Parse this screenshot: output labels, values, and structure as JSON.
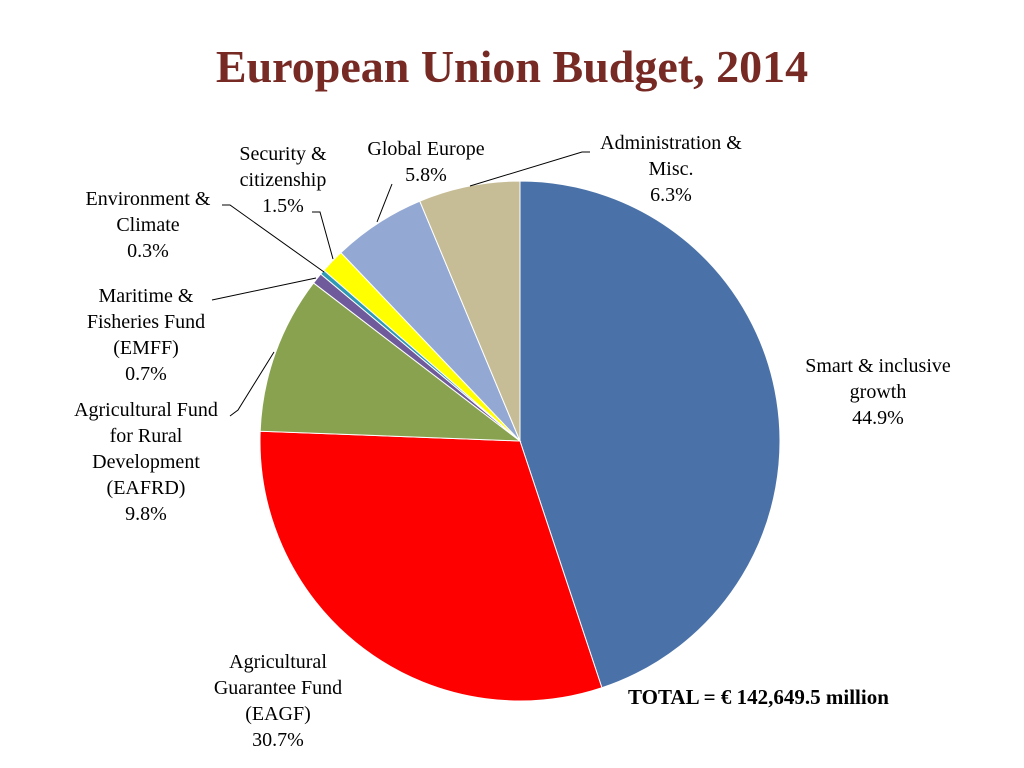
{
  "chart_data": {
    "type": "pie",
    "title": "European Union Budget, 2014",
    "slices": [
      {
        "name": "Smart & inclusive growth",
        "label_lines": [
          "Smart & inclusive",
          "growth"
        ],
        "pct_label": "44.9%",
        "value": 44.9,
        "color": "#4a72a8"
      },
      {
        "name": "Agricultural Guarantee Fund (EAGF)",
        "label_lines": [
          "Agricultural",
          "Guarantee Fund",
          "(EAGF)"
        ],
        "pct_label": "30.7%",
        "value": 30.7,
        "color": "#fe0000"
      },
      {
        "name": "Agricultural Fund for Rural Development (EAFRD)",
        "label_lines": [
          "Agricultural Fund",
          "for Rural",
          "Development",
          "(EAFRD)"
        ],
        "pct_label": "9.8%",
        "value": 9.8,
        "color": "#88a24f"
      },
      {
        "name": "Maritime & Fisheries Fund (EMFF)",
        "label_lines": [
          "Maritime &",
          "Fisheries Fund",
          "(EMFF)"
        ],
        "pct_label": "0.7%",
        "value": 0.7,
        "color": "#6f5a9c"
      },
      {
        "name": "Environment & Climate",
        "label_lines": [
          "Environment &",
          "Climate"
        ],
        "pct_label": "0.3%",
        "value": 0.3,
        "color": "#2e9ab3"
      },
      {
        "name": "Security & citizenship",
        "label_lines": [
          "Security &",
          "citizenship"
        ],
        "pct_label": "1.5%",
        "value": 1.5,
        "color": "#ffff00"
      },
      {
        "name": "Global Europe",
        "label_lines": [
          "Global Europe"
        ],
        "pct_label": "5.8%",
        "value": 5.8,
        "color": "#93a9d3"
      },
      {
        "name": "Administration & Misc.",
        "label_lines": [
          "Administration &",
          "Misc."
        ],
        "pct_label": "6.3%",
        "value": 6.3,
        "color": "#c6bd96"
      }
    ],
    "start_angle": "12 o'clock",
    "direction": "clockwise",
    "legend": "none"
  },
  "total_text": "TOTAL = € 142,649.5 million"
}
